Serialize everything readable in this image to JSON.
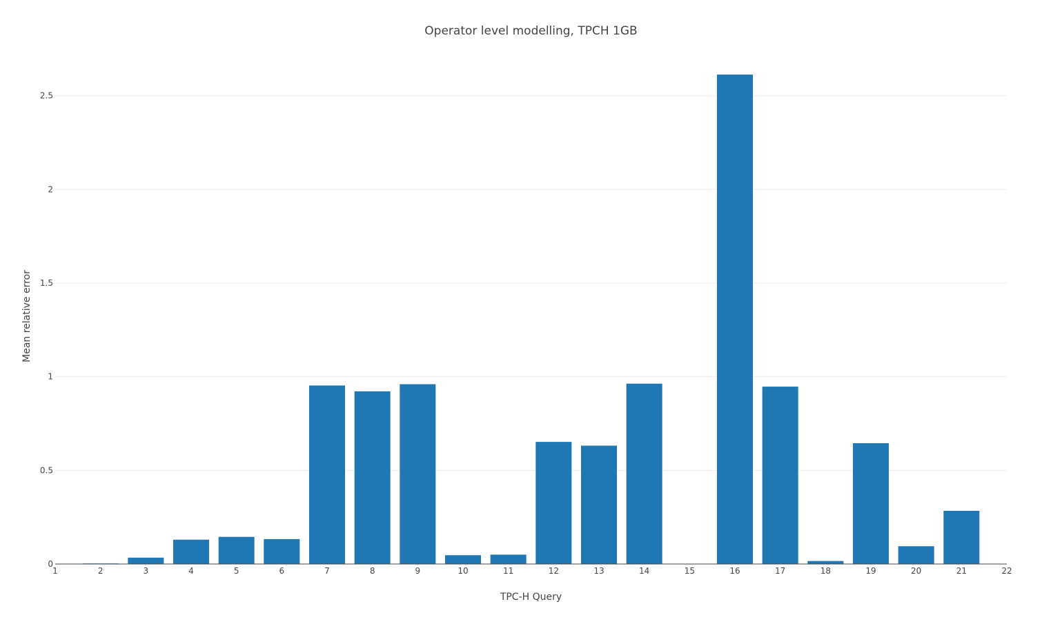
{
  "chart_data": {
    "type": "bar",
    "title": "Operator level modelling, TPCH 1GB",
    "xlabel": "TPC-H Query",
    "ylabel": "Mean relative error",
    "categories": [
      2,
      3,
      4,
      5,
      6,
      7,
      8,
      9,
      10,
      11,
      12,
      13,
      14,
      15,
      16,
      17,
      18,
      19,
      20,
      21
    ],
    "values": [
      0.003,
      0.034,
      0.13,
      0.145,
      0.133,
      0.953,
      0.922,
      0.96,
      0.047,
      0.05,
      0.652,
      0.632,
      0.963,
      0.0,
      2.613,
      0.947,
      0.016,
      0.645,
      0.095,
      0.284
    ],
    "xlim": [
      1,
      22
    ],
    "ylim": [
      0,
      2.65
    ],
    "x_ticks": [
      "1",
      "2",
      "3",
      "4",
      "5",
      "6",
      "7",
      "8",
      "9",
      "10",
      "11",
      "12",
      "13",
      "14",
      "15",
      "16",
      "17",
      "18",
      "19",
      "20",
      "21",
      "22"
    ],
    "y_ticks": [
      "0",
      "0.5",
      "1",
      "1.5",
      "2",
      "2.5"
    ],
    "grid": true,
    "legend": false,
    "bar_color": "#1f77b4"
  }
}
